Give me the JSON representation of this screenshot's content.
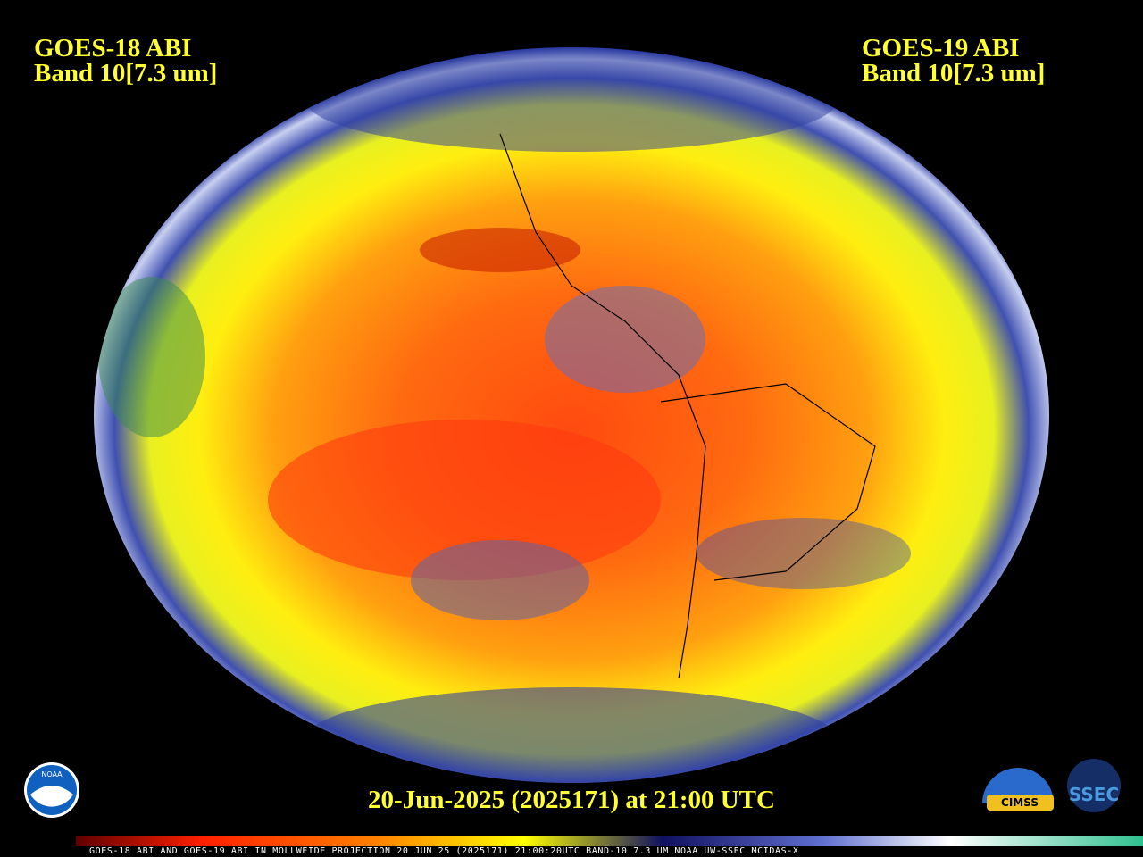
{
  "labels": {
    "left": {
      "satellite": "GOES-18 ABI",
      "band": "Band 10[7.3 um]"
    },
    "right": {
      "satellite": "GOES-19 ABI",
      "band": "Band 10[7.3 um]"
    },
    "timestamp": "20-Jun-2025 (2025171) at 21:00 UTC",
    "colorbar_caption": "GOES-18 ABI AND GOES-19 ABI IN MOLLWEIDE PROJECTION 20 JUN 25 (2025171) 21:00:20UTC BAND-10 7.3 UM NOAA UW-SSEC MCIDAS-X"
  },
  "logos": {
    "noaa": "NOAA",
    "cimss": "CIMSS",
    "ssec": "SSEC"
  }
}
